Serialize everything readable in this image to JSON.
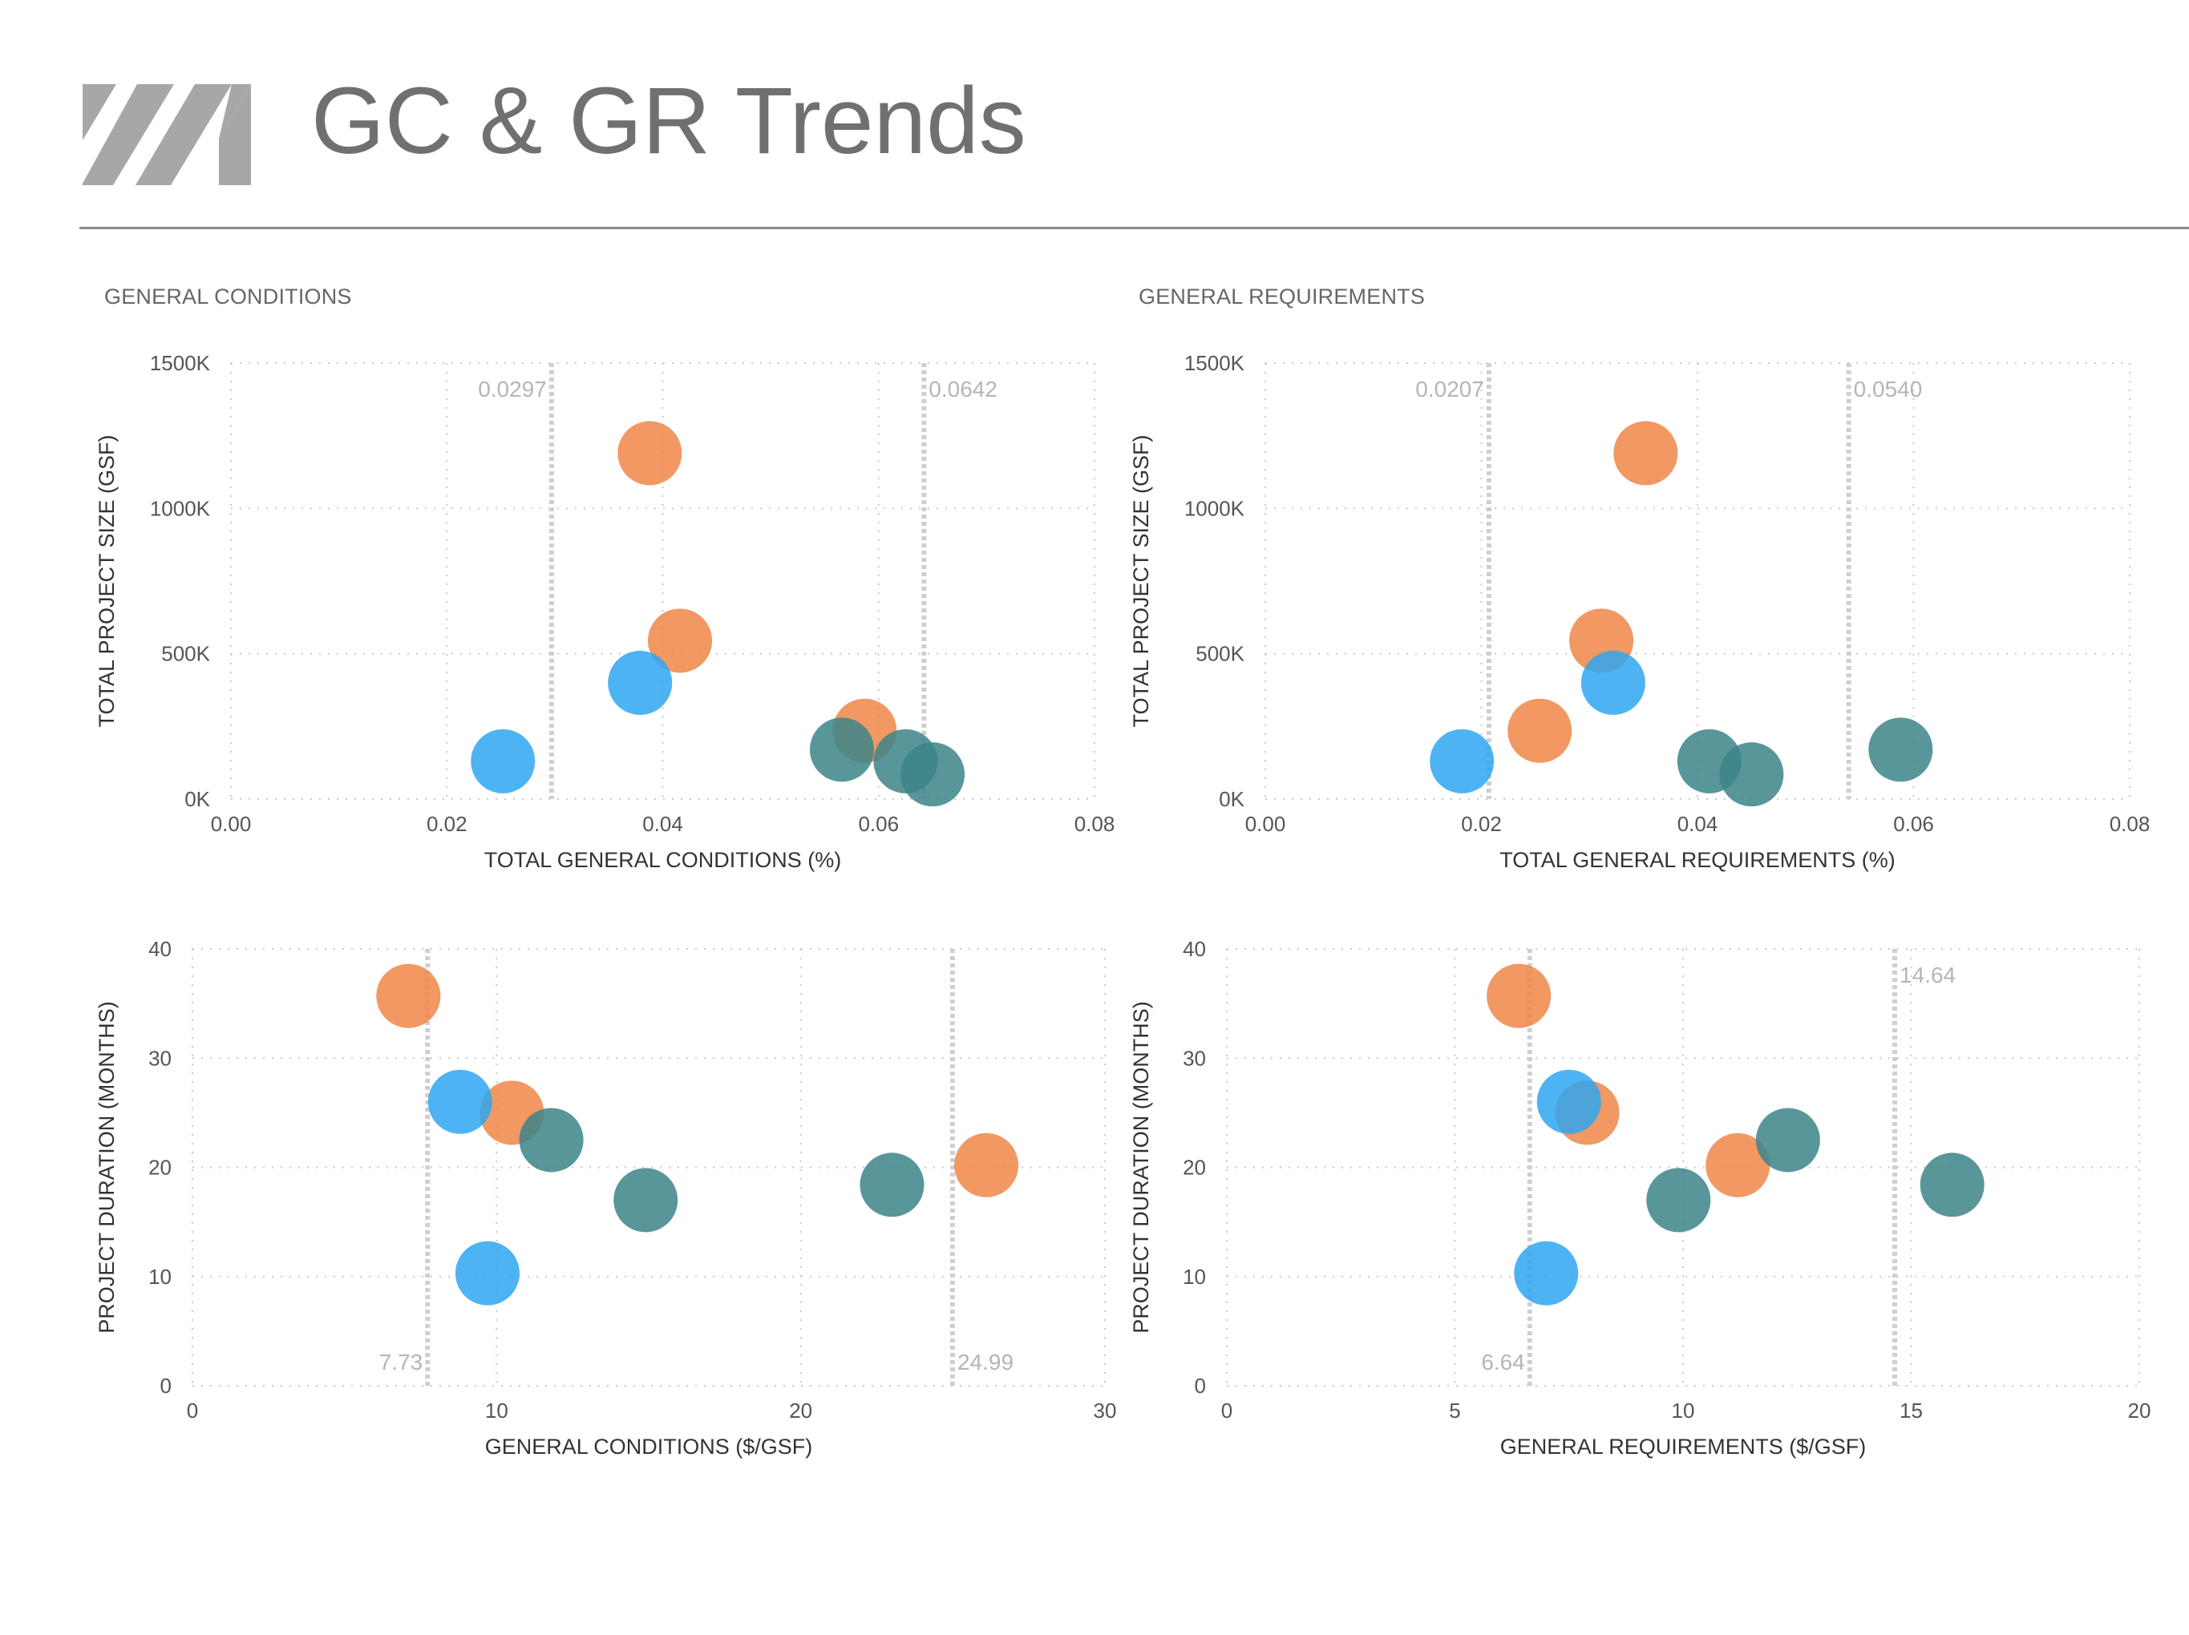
{
  "page": {
    "title": "GC & GR Trends",
    "logo": "vm-stripe-logo",
    "accent_gray": "#a7a7a7"
  },
  "sections": {
    "general_conditions": "GENERAL CONDITIONS",
    "general_requirements": "GENERAL REQUIREMENTS"
  },
  "colors": {
    "orange": "#ee8648",
    "blue": "#2fa6f0",
    "teal": "#3c8487"
  },
  "chart_data": [
    {
      "id": "gc-size",
      "type": "scatter",
      "xlabel": "TOTAL GENERAL CONDITIONS (%)",
      "ylabel": "TOTAL PROJECT SIZE (GSF)",
      "xlim": [
        0,
        0.08
      ],
      "ylim": [
        0,
        1500000
      ],
      "xticks": [
        0,
        0.02,
        0.04,
        0.06,
        0.08
      ],
      "xtick_labels": [
        "0.00",
        "0.02",
        "0.04",
        "0.06",
        "0.08"
      ],
      "yticks": [
        0,
        500000,
        1000000,
        1500000
      ],
      "ytick_labels": [
        "0K",
        "500K",
        "1000K",
        "1500K"
      ],
      "ref_lines": [
        {
          "x": 0.0297,
          "label": "0.0297",
          "label_pos": "top-left"
        },
        {
          "x": 0.0642,
          "label": "0.0642",
          "label_pos": "top-right"
        }
      ],
      "points": [
        {
          "x": 0.0388,
          "y": 1190000,
          "color": "orange"
        },
        {
          "x": 0.0416,
          "y": 545000,
          "color": "orange"
        },
        {
          "x": 0.0587,
          "y": 235000,
          "color": "orange"
        },
        {
          "x": 0.0379,
          "y": 400000,
          "color": "blue"
        },
        {
          "x": 0.0252,
          "y": 130000,
          "color": "blue"
        },
        {
          "x": 0.0566,
          "y": 170000,
          "color": "teal"
        },
        {
          "x": 0.0625,
          "y": 130000,
          "color": "teal"
        },
        {
          "x": 0.065,
          "y": 85000,
          "color": "teal"
        }
      ],
      "grid": true
    },
    {
      "id": "gr-size",
      "type": "scatter",
      "xlabel": "TOTAL GENERAL REQUIREMENTS (%)",
      "ylabel": "TOTAL PROJECT SIZE (GSF)",
      "xlim": [
        0,
        0.08
      ],
      "ylim": [
        0,
        1500000
      ],
      "xticks": [
        0,
        0.02,
        0.04,
        0.06,
        0.08
      ],
      "xtick_labels": [
        "0.00",
        "0.02",
        "0.04",
        "0.06",
        "0.08"
      ],
      "yticks": [
        0,
        500000,
        1000000,
        1500000
      ],
      "ytick_labels": [
        "0K",
        "500K",
        "1000K",
        "1500K"
      ],
      "ref_lines": [
        {
          "x": 0.0207,
          "label": "0.0207",
          "label_pos": "top-left"
        },
        {
          "x": 0.054,
          "label": "0.0540",
          "label_pos": "top-right"
        }
      ],
      "points": [
        {
          "x": 0.0352,
          "y": 1190000,
          "color": "orange"
        },
        {
          "x": 0.0311,
          "y": 545000,
          "color": "orange"
        },
        {
          "x": 0.0254,
          "y": 235000,
          "color": "orange"
        },
        {
          "x": 0.0322,
          "y": 400000,
          "color": "blue"
        },
        {
          "x": 0.0182,
          "y": 130000,
          "color": "blue"
        },
        {
          "x": 0.0588,
          "y": 170000,
          "color": "teal"
        },
        {
          "x": 0.0411,
          "y": 130000,
          "color": "teal"
        },
        {
          "x": 0.045,
          "y": 85000,
          "color": "teal"
        }
      ],
      "grid": true
    },
    {
      "id": "gc-duration",
      "type": "scatter",
      "xlabel": "GENERAL CONDITIONS ($/GSF)",
      "ylabel": "PROJECT DURATION (MONTHS)",
      "xlim": [
        0,
        30
      ],
      "ylim": [
        0,
        40
      ],
      "xticks": [
        0,
        10,
        20,
        30
      ],
      "xtick_labels": [
        "0",
        "10",
        "20",
        "30"
      ],
      "yticks": [
        0,
        10,
        20,
        30,
        40
      ],
      "ytick_labels": [
        "0",
        "10",
        "20",
        "30",
        "40"
      ],
      "ref_lines": [
        {
          "x": 7.73,
          "label": "7.73",
          "label_pos": "bottom-left"
        },
        {
          "x": 24.99,
          "label": "24.99",
          "label_pos": "bottom-right"
        }
      ],
      "points": [
        {
          "x": 7.1,
          "y": 35.7,
          "color": "orange"
        },
        {
          "x": 10.5,
          "y": 25.0,
          "color": "orange"
        },
        {
          "x": 26.1,
          "y": 20.2,
          "color": "orange"
        },
        {
          "x": 8.8,
          "y": 26.0,
          "color": "blue"
        },
        {
          "x": 9.7,
          "y": 10.3,
          "color": "blue"
        },
        {
          "x": 11.8,
          "y": 22.5,
          "color": "teal"
        },
        {
          "x": 14.9,
          "y": 17.0,
          "color": "teal"
        },
        {
          "x": 23.0,
          "y": 18.4,
          "color": "teal"
        }
      ],
      "grid": true
    },
    {
      "id": "gr-duration",
      "type": "scatter",
      "xlabel": "GENERAL REQUIREMENTS ($/GSF)",
      "ylabel": "PROJECT DURATION (MONTHS)",
      "xlim": [
        0,
        20
      ],
      "ylim": [
        0,
        40
      ],
      "xticks": [
        0,
        5,
        10,
        15,
        20
      ],
      "xtick_labels": [
        "0",
        "5",
        "10",
        "15",
        "20"
      ],
      "yticks": [
        0,
        10,
        20,
        30,
        40
      ],
      "ytick_labels": [
        "0",
        "10",
        "20",
        "30",
        "40"
      ],
      "ref_lines": [
        {
          "x": 6.64,
          "label": "6.64",
          "label_pos": "bottom-left"
        },
        {
          "x": 14.64,
          "label": "14.64",
          "label_pos": "top-right"
        }
      ],
      "points": [
        {
          "x": 6.4,
          "y": 35.7,
          "color": "orange"
        },
        {
          "x": 7.9,
          "y": 25.0,
          "color": "orange"
        },
        {
          "x": 11.2,
          "y": 20.2,
          "color": "orange"
        },
        {
          "x": 7.5,
          "y": 26.0,
          "color": "blue"
        },
        {
          "x": 7.0,
          "y": 10.3,
          "color": "blue"
        },
        {
          "x": 12.3,
          "y": 22.5,
          "color": "teal"
        },
        {
          "x": 9.9,
          "y": 17.0,
          "color": "teal"
        },
        {
          "x": 15.9,
          "y": 18.4,
          "color": "teal"
        }
      ],
      "grid": true
    }
  ]
}
